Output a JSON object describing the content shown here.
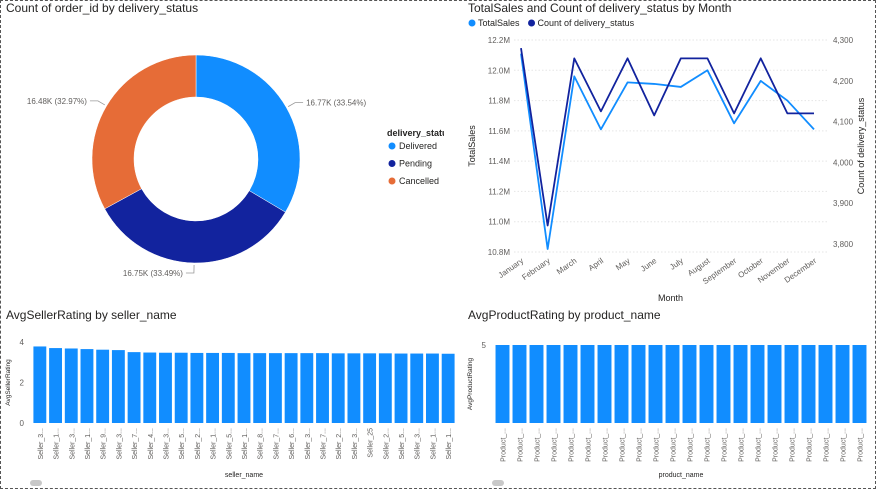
{
  "chart_data": [
    {
      "type": "pie",
      "title": "Count of order_id by delivery_status",
      "legend_title": "delivery_status",
      "legend_position": "right",
      "slices": [
        {
          "name": "Delivered",
          "value": 16770,
          "label": "16.77K (33.54%)",
          "color": "#118DFF"
        },
        {
          "name": "Pending",
          "value": 16750,
          "label": "16.75K (33.49%)",
          "color": "#12239E"
        },
        {
          "name": "Cancelled",
          "value": 16480,
          "label": "16.48K (32.97%)",
          "color": "#E66C37"
        }
      ]
    },
    {
      "type": "line",
      "title": "TotalSales and Count of delivery_status by Month",
      "xlabel": "Month",
      "ylabel": "TotalSales",
      "y2label": "Count of delivery_status",
      "legend_position": "top-left",
      "x": [
        "January",
        "February",
        "March",
        "April",
        "May",
        "June",
        "July",
        "August",
        "September",
        "October",
        "November",
        "December"
      ],
      "ylim": [
        10.8,
        12.2
      ],
      "y_ticks": [
        "10.8M",
        "11.0M",
        "11.2M",
        "11.4M",
        "11.6M",
        "11.8M",
        "12.0M",
        "12.2M"
      ],
      "y2lim": [
        3780,
        4300
      ],
      "y2_ticks": [
        "3,800",
        "3,900",
        "4,000",
        "4,100",
        "4,200",
        "4,300"
      ],
      "grid": true,
      "series": [
        {
          "name": "TotalSales",
          "axis": "left",
          "color": "#118DFF",
          "values": [
            12.11,
            10.82,
            11.96,
            11.61,
            11.92,
            11.91,
            11.89,
            12.0,
            11.65,
            11.93,
            11.8,
            11.61
          ]
        },
        {
          "name": "Count of delivery_status",
          "axis": "right",
          "color": "#12239E",
          "values": [
            4280,
            3845,
            4255,
            4125,
            4255,
            4115,
            4255,
            4255,
            4120,
            4255,
            4120,
            4120
          ]
        }
      ]
    },
    {
      "type": "bar",
      "title": "AvgSellerRating by seller_name",
      "xlabel": "seller_name",
      "ylabel": "AvgSellerRating",
      "ylim": [
        0,
        4
      ],
      "y_ticks": [
        "0",
        "2",
        "4"
      ],
      "color": "#118DFF",
      "categories": [
        "Seller_3...",
        "Seller_1...",
        "Seller_3...",
        "Seller_1...",
        "Seller_9...",
        "Seller_3...",
        "Seller_7...",
        "Seller_4...",
        "Seller_3...",
        "Seller_5...",
        "Seller_2...",
        "Seller_1...",
        "Seller_5...",
        "Seller_1...",
        "Seller_8...",
        "Seller_7...",
        "Seller_6...",
        "Seller_3...",
        "Seller_7...",
        "Seller_2...",
        "Seller_3...",
        "Seller_25",
        "Seller_2...",
        "Seller_5...",
        "Seller_3...",
        "Seller_1...",
        "Seller_1..."
      ],
      "values": [
        3.78,
        3.7,
        3.68,
        3.65,
        3.62,
        3.6,
        3.5,
        3.48,
        3.47,
        3.47,
        3.46,
        3.46,
        3.46,
        3.45,
        3.45,
        3.45,
        3.45,
        3.45,
        3.45,
        3.44,
        3.44,
        3.44,
        3.44,
        3.43,
        3.43,
        3.43,
        3.42
      ]
    },
    {
      "type": "bar",
      "title": "AvgProductRating by product_name",
      "xlabel": "product_name",
      "ylabel": "AvgProductRating",
      "ylim": [
        0,
        5
      ],
      "y_ticks": [
        "5"
      ],
      "color": "#118DFF",
      "categories": [
        "Product_...",
        "Product_...",
        "Product_...",
        "Product_...",
        "Product_...",
        "Product_...",
        "Product_...",
        "Product_...",
        "Product_...",
        "Product_...",
        "Product_...",
        "Product_...",
        "Product_...",
        "Product_...",
        "Product_...",
        "Product_...",
        "Product_...",
        "Product_...",
        "Product_...",
        "Product_...",
        "Product_...",
        "Product_..."
      ],
      "values": [
        5,
        5,
        5,
        5,
        5,
        5,
        5,
        5,
        5,
        5,
        5,
        5,
        5,
        5,
        5,
        5,
        5,
        5,
        5,
        5,
        5,
        5
      ]
    }
  ]
}
